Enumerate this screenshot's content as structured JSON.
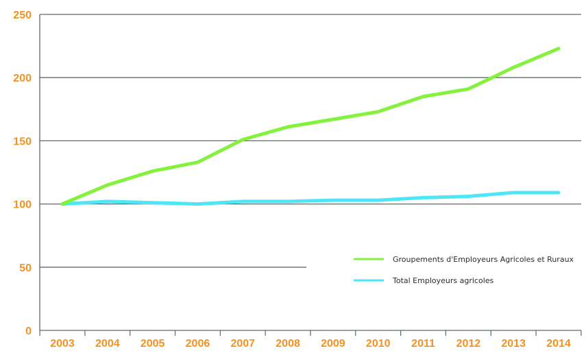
{
  "chart_data": {
    "type": "line",
    "title": "",
    "xlabel": "",
    "ylabel": "",
    "categories": [
      "2003",
      "2004",
      "2005",
      "2006",
      "2007",
      "2008",
      "2009",
      "2010",
      "2011",
      "2012",
      "2013",
      "2014"
    ],
    "yticks": [
      "0",
      "50",
      "100",
      "150",
      "200",
      "250"
    ],
    "ylim": [
      0,
      250
    ],
    "grid": "horizontal",
    "legend_position": "center-right",
    "series": [
      {
        "name": "Groupements d'Employeurs Agricoles et Ruraux",
        "color": "#84f23c",
        "values": [
          100,
          115,
          126,
          133,
          151,
          161,
          167,
          173,
          185,
          191,
          208,
          223
        ]
      },
      {
        "name": "Total Employeurs agricoles",
        "color": "#4de6f7",
        "values": [
          100,
          102,
          101,
          100,
          102,
          102,
          103,
          103,
          105,
          106,
          109,
          109
        ]
      }
    ],
    "colors": {
      "axis": "#5b6b69",
      "gridline": "#5b6b69",
      "tick_label": "#f39222"
    }
  }
}
